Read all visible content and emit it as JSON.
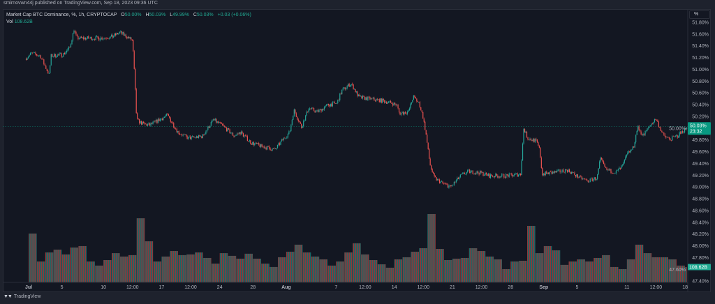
{
  "header": {
    "publish_note": "smirnovwn44j published on TradingView.com, Sep 18, 2023 09:36 UTC"
  },
  "legend": {
    "symbol": "Market Cap BTC Dominance, %, 1h, CRYPTOCAP",
    "o_label": "O",
    "o_value": "50.00%",
    "h_label": "H",
    "h_value": "50.03%",
    "l_label": "L",
    "l_value": "49.99%",
    "c_label": "C",
    "c_value": "50.03%",
    "change": "+0.03 (+0.06%)",
    "vol_label": "Vol",
    "vol_value": "108.62B"
  },
  "scale_button": "%",
  "last_price": {
    "value": "50.03%",
    "countdown": "23:32"
  },
  "last_volume": "108.62B",
  "footer": {
    "brand": "TradingView",
    "logo_mark": "TV"
  },
  "colors": {
    "up": "#26a69a",
    "down": "#ef5350",
    "background": "#131722",
    "label_bg": "#089981"
  },
  "chart_data": {
    "type": "candlestick",
    "interval": "1h",
    "yunit": "%",
    "ylim": [
      47.3,
      51.9
    ],
    "y_ticks": [
      "51.80%",
      "51.60%",
      "51.40%",
      "51.20%",
      "51.00%",
      "50.80%",
      "50.60%",
      "50.40%",
      "50.20%",
      "50.00%",
      "49.80%",
      "49.60%",
      "49.40%",
      "49.20%",
      "49.00%",
      "48.80%",
      "48.60%",
      "48.40%",
      "48.20%",
      "48.00%",
      "47.80%",
      "47.60%",
      "47.40%"
    ],
    "x_ticks": [
      {
        "label": "Jul",
        "date": "2023-07-01 00:00",
        "bold": true
      },
      {
        "label": "5",
        "date": "2023-07-05 00:00"
      },
      {
        "label": "10",
        "date": "2023-07-10 00:00"
      },
      {
        "label": "12:00",
        "date": "2023-07-13 12:00"
      },
      {
        "label": "17",
        "date": "2023-07-17 00:00"
      },
      {
        "label": "12:00",
        "date": "2023-07-20 12:00"
      },
      {
        "label": "24",
        "date": "2023-07-24 00:00"
      },
      {
        "label": "28",
        "date": "2023-07-28 00:00"
      },
      {
        "label": "Aug",
        "date": "2023-08-01 00:00",
        "bold": true
      },
      {
        "label": "7",
        "date": "2023-08-07 00:00"
      },
      {
        "label": "12:00",
        "date": "2023-08-10 12:00"
      },
      {
        "label": "14",
        "date": "2023-08-14 00:00"
      },
      {
        "label": "12:00",
        "date": "2023-08-17 12:00"
      },
      {
        "label": "21",
        "date": "2023-08-21 00:00"
      },
      {
        "label": "12:00",
        "date": "2023-08-24 12:00"
      },
      {
        "label": "28",
        "date": "2023-08-28 00:00"
      },
      {
        "label": "Sep",
        "date": "2023-09-01 00:00",
        "bold": true
      },
      {
        "label": "5",
        "date": "2023-09-05 00:00"
      },
      {
        "label": "11",
        "date": "2023-09-11 00:00"
      },
      {
        "label": "12:00",
        "date": "2023-09-14 12:00"
      },
      {
        "label": "18",
        "date": "2023-09-18 00:00"
      }
    ],
    "price_path": [
      [
        "2023-06-30 14:00",
        51.18
      ],
      [
        "2023-07-01 08:00",
        51.27
      ],
      [
        "2023-07-02 10:00",
        51.23
      ],
      [
        "2023-07-03 00:00",
        51.05
      ],
      [
        "2023-07-03 11:00",
        50.91
      ],
      [
        "2023-07-03 17:00",
        51.23
      ],
      [
        "2023-07-05 03:00",
        51.25
      ],
      [
        "2023-07-05 23:00",
        51.37
      ],
      [
        "2023-07-06 11:00",
        51.68
      ],
      [
        "2023-07-06 19:00",
        51.53
      ],
      [
        "2023-07-09 08:00",
        51.53
      ],
      [
        "2023-07-11 00:00",
        51.55
      ],
      [
        "2023-07-12 00:00",
        51.63
      ],
      [
        "2023-07-13 02:00",
        51.53
      ],
      [
        "2023-07-13 12:00",
        51.49
      ],
      [
        "2023-07-13 18:00",
        50.88
      ],
      [
        "2023-07-14 00:00",
        50.14
      ],
      [
        "2023-07-14 19:00",
        50.07
      ],
      [
        "2023-07-15 14:00",
        50.05
      ],
      [
        "2023-07-16 17:00",
        50.14
      ],
      [
        "2023-07-17 17:00",
        50.22
      ],
      [
        "2023-07-19 00:00",
        49.93
      ],
      [
        "2023-07-20 05:00",
        49.83
      ],
      [
        "2023-07-21 22:00",
        49.86
      ],
      [
        "2023-07-23 05:00",
        50.14
      ],
      [
        "2023-07-24 07:00",
        50.05
      ],
      [
        "2023-07-25 17:00",
        49.87
      ],
      [
        "2023-07-26 12:00",
        49.93
      ],
      [
        "2023-07-27 19:00",
        49.75
      ],
      [
        "2023-07-29 02:00",
        49.69
      ],
      [
        "2023-07-30 15:00",
        49.63
      ],
      [
        "2023-07-31 15:00",
        49.81
      ],
      [
        "2023-08-01 10:00",
        49.93
      ],
      [
        "2023-08-01 22:00",
        50.31
      ],
      [
        "2023-08-02 20:00",
        50.02
      ],
      [
        "2023-08-03 17:00",
        50.34
      ],
      [
        "2023-08-04 19:00",
        50.28
      ],
      [
        "2023-08-06 02:00",
        50.4
      ],
      [
        "2023-08-07 02:00",
        50.42
      ],
      [
        "2023-08-07 17:00",
        50.64
      ],
      [
        "2023-08-08 19:00",
        50.76
      ],
      [
        "2023-08-09 19:00",
        50.52
      ],
      [
        "2023-08-11 02:00",
        50.5
      ],
      [
        "2023-08-12 19:00",
        50.46
      ],
      [
        "2023-08-14 07:00",
        50.4
      ],
      [
        "2023-08-14 15:00",
        50.25
      ],
      [
        "2023-08-15 17:00",
        50.28
      ],
      [
        "2023-08-16 07:00",
        50.54
      ],
      [
        "2023-08-17 00:00",
        50.42
      ],
      [
        "2023-08-17 10:00",
        50.22
      ],
      [
        "2023-08-17 19:00",
        49.93
      ],
      [
        "2023-08-18 07:00",
        49.39
      ],
      [
        "2023-08-18 19:00",
        49.16
      ],
      [
        "2023-08-19 17:00",
        49.07
      ],
      [
        "2023-08-20 19:00",
        49.0
      ],
      [
        "2023-08-22 00:00",
        49.19
      ],
      [
        "2023-08-22 22:00",
        49.26
      ],
      [
        "2023-08-24 10:00",
        49.24
      ],
      [
        "2023-08-25 10:00",
        49.19
      ],
      [
        "2023-08-27 12:00",
        49.19
      ],
      [
        "2023-08-29 05:00",
        49.22
      ],
      [
        "2023-08-29 14:00",
        49.99
      ],
      [
        "2023-08-30 02:00",
        49.83
      ],
      [
        "2023-08-31 02:00",
        49.78
      ],
      [
        "2023-08-31 12:00",
        49.63
      ],
      [
        "2023-08-31 19:00",
        49.22
      ],
      [
        "2023-09-02 10:00",
        49.25
      ],
      [
        "2023-09-03 19:00",
        49.29
      ],
      [
        "2023-09-05 07:00",
        49.16
      ],
      [
        "2023-09-06 07:00",
        49.1
      ],
      [
        "2023-09-07 10:00",
        49.16
      ],
      [
        "2023-09-07 19:00",
        49.48
      ],
      [
        "2023-09-08 12:00",
        49.29
      ],
      [
        "2023-09-09 17:00",
        49.25
      ],
      [
        "2023-09-10 12:00",
        49.36
      ],
      [
        "2023-09-11 00:00",
        49.55
      ],
      [
        "2023-09-11 19:00",
        49.67
      ],
      [
        "2023-09-12 07:00",
        50.02
      ],
      [
        "2023-09-12 22:00",
        49.87
      ],
      [
        "2023-09-13 22:00",
        50.07
      ],
      [
        "2023-09-14 12:00",
        50.16
      ],
      [
        "2023-09-15 10:00",
        49.87
      ],
      [
        "2023-09-16 05:00",
        49.81
      ],
      [
        "2023-09-17 02:00",
        49.87
      ],
      [
        "2023-09-18 09:00",
        50.03
      ]
    ],
    "last_close": 50.03,
    "volume_unit": "B",
    "volume_daily_start": "2023-07-01",
    "volume_daily": [
      346,
      148,
      212,
      232,
      198,
      247,
      257,
      148,
      119,
      158,
      207,
      183,
      193,
      454,
      291,
      148,
      183,
      222,
      193,
      198,
      212,
      173,
      133,
      207,
      188,
      168,
      203,
      168,
      133,
      109,
      178,
      217,
      267,
      212,
      183,
      163,
      119,
      148,
      212,
      277,
      198,
      158,
      128,
      104,
      163,
      178,
      217,
      242,
      484,
      237,
      158,
      168,
      173,
      242,
      222,
      183,
      163,
      94,
      148,
      153,
      400,
      207,
      257,
      227,
      124,
      148,
      163,
      148,
      173,
      193,
      109,
      94,
      163,
      267,
      207,
      178,
      178,
      163,
      119,
      108.62
    ]
  }
}
